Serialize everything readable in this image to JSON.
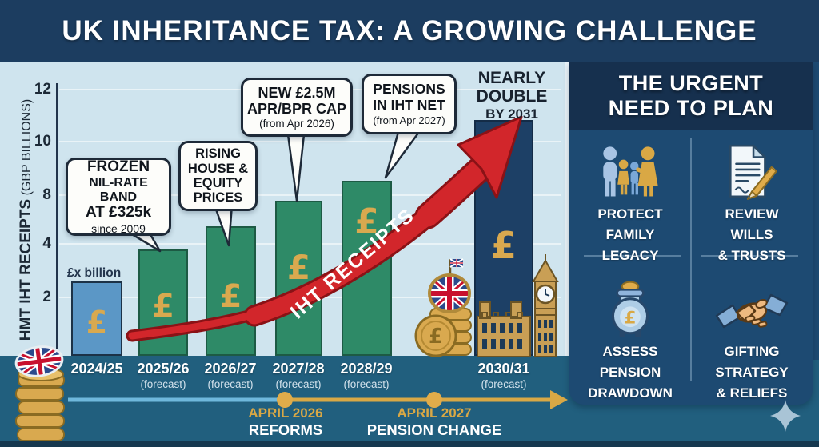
{
  "banner": {
    "title": "UK INHERITANCE TAX: A GROWING CHALLENGE"
  },
  "chart_data": {
    "type": "bar",
    "ylabel": "HMT IHT RECEIPTS",
    "ylabel_sub": "(GBP BILLIONS)",
    "y_ticks": [
      "12",
      "10",
      "8",
      "4",
      "2"
    ],
    "ylim": [
      0,
      12
    ],
    "grid": true,
    "categories": [
      "2024/25",
      "2025/26",
      "2026/27",
      "2027/28",
      "2028/29",
      "2030/31"
    ],
    "forecast_label": "(forecast)",
    "is_forecast": [
      false,
      true,
      true,
      true,
      true,
      true
    ],
    "values_gbp_bn": [
      3.1,
      3.9,
      5.4,
      7.4,
      8.5,
      10.7
    ],
    "bar_height_pct": [
      27.5,
      39.5,
      48,
      57.5,
      65,
      87.5
    ],
    "bar_colors": [
      "#5b97c6",
      "#2e8a67",
      "#2e8a67",
      "#2e8a67",
      "#2e8a67",
      "#1d4066"
    ],
    "currency_symbol": "£",
    "first_bar_label": "£x billion",
    "trend_arrow_label": "IHT RECEIPTS",
    "callouts": [
      {
        "lines": [
          "FROZEN",
          "NIL-RATE BAND",
          "AT £325k"
        ],
        "note": "since 2009"
      },
      {
        "lines": [
          "RISING",
          "HOUSE &",
          "EQUITY",
          "PRICES"
        ],
        "note": ""
      },
      {
        "lines": [
          "NEW £2.5M",
          "APR/BPR CAP"
        ],
        "note": "(from Apr 2026)"
      },
      {
        "lines": [
          "PENSIONS",
          "IN IHT NET"
        ],
        "note": "(from Apr 2027)"
      }
    ],
    "headline_annotation": {
      "line1": "NEARLY",
      "line2": "DOUBLE",
      "note": "BY 2031"
    }
  },
  "timeline": {
    "events": [
      {
        "date": "APRIL 2026",
        "label": "REFORMS"
      },
      {
        "date": "APRIL 2027",
        "label": "PENSION CHANGE"
      }
    ]
  },
  "right_panel": {
    "title_line1": "THE URGENT",
    "title_line2": "NEED TO PLAN",
    "quadrants": [
      {
        "icon": "family-icon",
        "lines": [
          "PROTECT",
          "FAMILY",
          "LEGACY"
        ]
      },
      {
        "icon": "will-and-pencil-icon",
        "lines": [
          "REVIEW",
          "WILLS",
          "& TRUSTS"
        ]
      },
      {
        "icon": "pension-pot-icon",
        "lines": [
          "ASSESS",
          "PENSION",
          "DRAWDOWN"
        ]
      },
      {
        "icon": "handshake-icon",
        "lines": [
          "GIFTING",
          "STRATEGY",
          "& RELIEFS"
        ]
      }
    ]
  },
  "colors": {
    "banner_navy": "#1c3d60",
    "chart_background": "#cfe4ee",
    "bar_green": "#2e8a67",
    "bar_blue": "#5b97c6",
    "bar_navy": "#1d4066",
    "arrow_red": "#d2262b",
    "gold_accent": "#d9a845",
    "teal_band": "#215f7e",
    "panel_navy": "#1d4a72",
    "panel_header_navy": "#16304e"
  }
}
